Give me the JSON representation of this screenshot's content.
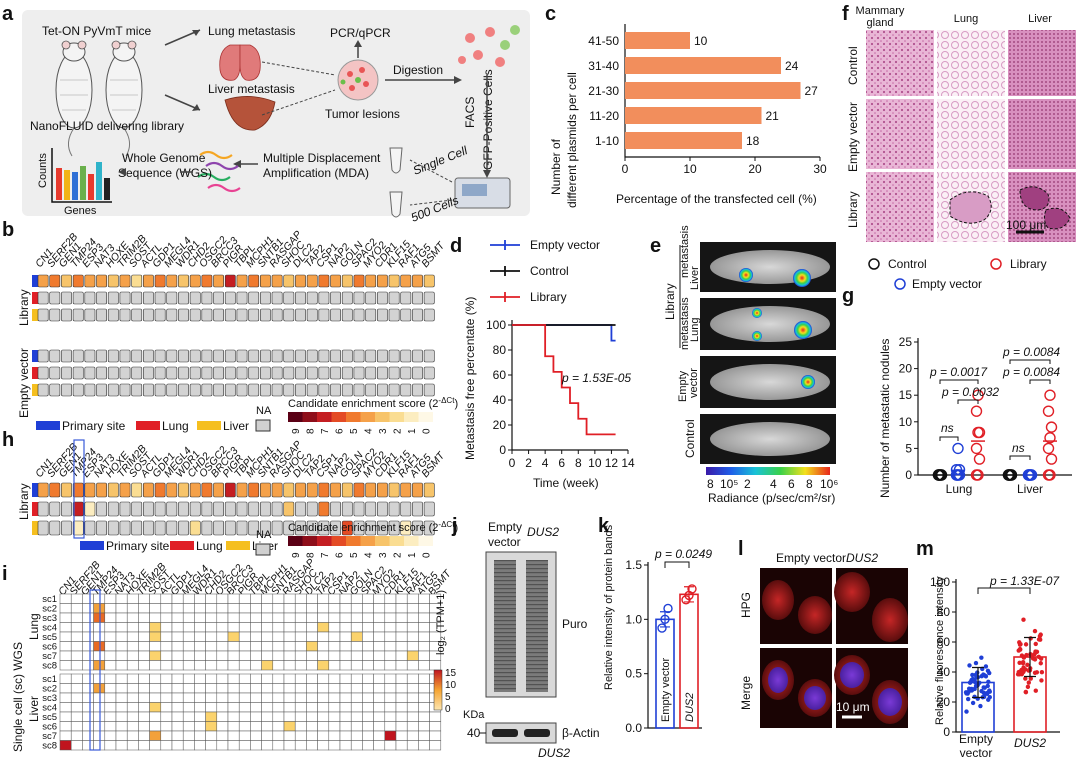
{
  "panels": {
    "a": "a",
    "b": "b",
    "c": "c",
    "d": "d",
    "e": "e",
    "f": "f",
    "g": "g",
    "h": "h",
    "i": "i",
    "j": "j",
    "k": "k",
    "l": "l",
    "m": "m"
  },
  "panel_a": {
    "mice": "Tet-ON PyVmT mice",
    "delivery": "NanoFLUID delivering library",
    "lung": "Lung metastasis",
    "liver": "Liver metastasis",
    "lesions": "Tumor lesions",
    "pcr": "PCR/qPCR",
    "digestion": "Digestion",
    "gfp": "GFP-Positive Cells",
    "facs": "FACS",
    "single": "Single Cell",
    "five_hundred": "500 Cells",
    "mda1": "Multiple Displacement",
    "mda2": "Amplification (MDA)",
    "wgs1": "Whole Genome",
    "wgs2": "Sequence (WGS)",
    "counts": "Counts",
    "genes": "Genes",
    "bar_colors": [
      "#e83a2e",
      "#f2b418",
      "#2e6fd6",
      "#6ab04c",
      "#e83a2e",
      "#2fb3c9",
      "#222222"
    ]
  },
  "genes": [
    "CN1",
    "SERF2B",
    "GEN1",
    "TMP24",
    "ESP3",
    "NAT3",
    "HOXE",
    "TRIM2B",
    "SOST",
    "ACTL",
    "GDP1",
    "MEGL4",
    "WDR1",
    "CHD2",
    "OSGC2",
    "BRCC3",
    "PIGR",
    "TBPL",
    "MCPH1",
    "SNTB1",
    "RASGAP",
    "SHOC",
    "DLC2",
    "TAP2",
    "CSP1",
    "NAP2",
    "GOLN",
    "SPAC2",
    "MYO2",
    "CDR1",
    "KLF15",
    "RAF1",
    "ATG5",
    "BSMT"
  ],
  "panel_b": {
    "groups": [
      "Library",
      "Empty vector"
    ],
    "legend_sites": [
      "Primary site",
      "Lung",
      "Liver"
    ],
    "na": "NA",
    "score_title": "Candidate enrichment score (2",
    "score_sup": "-ΔCt",
    "score_ticks": [
      "9",
      "8",
      "7",
      "6",
      "5",
      "4",
      "3",
      "2",
      "1",
      "0"
    ],
    "score_colors": [
      "#5a0015",
      "#8e0e1a",
      "#c41e22",
      "#e44b25",
      "#f07a2e",
      "#f5a149",
      "#f7c46a",
      "#fadd92",
      "#fcedc0",
      "#fef8e6"
    ],
    "site_colors": [
      "#1f3fd6",
      "#e01f26",
      "#f5bf1f"
    ],
    "primary_row": [
      4,
      5,
      3,
      5,
      4,
      4,
      3,
      4,
      2,
      4,
      5,
      4,
      3,
      4,
      5,
      4,
      7,
      4,
      5,
      4,
      4,
      3,
      4,
      4,
      5,
      4,
      3,
      5,
      4,
      4,
      3,
      4,
      4,
      3
    ]
  },
  "panel_c": {
    "chart_data": {
      "type": "bar",
      "orientation": "horizontal",
      "categories": [
        "41-50",
        "31-40",
        "21-30",
        "11-20",
        "1-10"
      ],
      "values": [
        10,
        24,
        27,
        21,
        18
      ],
      "xlabel": "Percentage of the transfected cell (%)",
      "ylabel": "Number of different plasmids per cell",
      "xlim": [
        0,
        30
      ],
      "xticks": [
        "0",
        "10",
        "20",
        "30"
      ],
      "bar_color": "#f28e5c"
    },
    "ylabel1": "Number of",
    "ylabel2": "different plasmids per cell"
  },
  "panel_d": {
    "chart_data": {
      "type": "line",
      "xlabel": "Time (week)",
      "ylabel": "Metastasis free percentate (%)",
      "xlim": [
        0,
        14
      ],
      "ylim": [
        0,
        100
      ],
      "xticks": [
        "0",
        "2",
        "4",
        "6",
        "8",
        "10",
        "12",
        "14"
      ],
      "yticks": [
        "0",
        "20",
        "40",
        "60",
        "80",
        "100"
      ],
      "series": [
        {
          "name": "Empty vector",
          "color": "#1f3fd6",
          "steps": [
            [
              0,
              100
            ],
            [
              12,
              100
            ],
            [
              12,
              87.5
            ],
            [
              12.5,
              87.5
            ]
          ]
        },
        {
          "name": "Control",
          "color": "#111111",
          "steps": [
            [
              0,
              100
            ],
            [
              12.5,
              100
            ]
          ]
        },
        {
          "name": "Library",
          "color": "#e01f26",
          "steps": [
            [
              0,
              100
            ],
            [
              4,
              100
            ],
            [
              4,
              75
            ],
            [
              5,
              75
            ],
            [
              5,
              62.5
            ],
            [
              6,
              62.5
            ],
            [
              6,
              50
            ],
            [
              7,
              50
            ],
            [
              7,
              37.5
            ],
            [
              8,
              37.5
            ],
            [
              8,
              25
            ],
            [
              9,
              25
            ],
            [
              9,
              12.5
            ],
            [
              12.5,
              12.5
            ]
          ]
        }
      ],
      "annotation": "p = 1.53E-05"
    },
    "legend": [
      "Empty vector",
      "Control",
      "Library"
    ]
  },
  "panel_e": {
    "group_library": "Library",
    "liver_met": "Liver metastasis",
    "liver_1": "Liver",
    "liver_2": "metastasis",
    "lung_1": "Lung",
    "lung_2": "metastasis",
    "empty_1": "Empty",
    "empty_2": "vector",
    "control": "Control",
    "scale_ticks": [
      "8",
      "10⁵",
      "2",
      "4",
      "6",
      "8",
      "10⁶"
    ],
    "scale_label": "Radiance (p/sec/cm²/sr)"
  },
  "panel_f": {
    "cols": [
      "Mammary gland",
      "Lung",
      "Liver"
    ],
    "col_mg1": "Mammary",
    "col_mg2": "gland",
    "rows": [
      "Control",
      "Empty vector",
      "Library"
    ],
    "scale": "100 μm"
  },
  "panel_g": {
    "chart_data": {
      "type": "scatter",
      "ylabel": "Number of metastatic nodules",
      "ylim": [
        0,
        25
      ],
      "yticks": [
        "0",
        "5",
        "10",
        "15",
        "20",
        "25"
      ],
      "categories": [
        "Lung",
        "Liver"
      ],
      "series": [
        {
          "name": "Control",
          "color": "#111111",
          "Lung": [
            0,
            0,
            0,
            0,
            0,
            0,
            0,
            0
          ],
          "Liver": [
            0,
            0,
            0,
            0,
            0,
            0,
            0,
            0
          ]
        },
        {
          "name": "Empty vector",
          "color": "#1f3fd6",
          "Lung": [
            0,
            0,
            0,
            0,
            0,
            1,
            1,
            5
          ],
          "Liver": [
            0,
            0,
            0,
            0,
            0,
            0,
            0,
            0
          ]
        },
        {
          "name": "Library",
          "color": "#e01f26",
          "Lung": [
            0,
            0,
            3,
            5,
            8,
            8,
            12,
            15
          ],
          "Liver": [
            0,
            0,
            3,
            5,
            7,
            9,
            12,
            15
          ]
        }
      ],
      "annotations": [
        "p = 0.0017",
        "p = 0.0032",
        "p = 0.0084",
        "p = 0.0084",
        "ns",
        "ns"
      ]
    },
    "legend": [
      "Control",
      "Library",
      "Empty vector"
    ]
  },
  "panel_h": {
    "group": "Library",
    "legend_sites": [
      "Primary site",
      "Lung",
      "Liver"
    ]
  },
  "panel_i": {
    "ylabel": "Single cell (sc) WGS",
    "lung": "Lung",
    "liver": "Liver",
    "lung_cells": [
      "sc1",
      "sc2",
      "sc3",
      "sc4",
      "sc5",
      "sc6",
      "sc7",
      "sc8"
    ],
    "liver_cells": [
      "sc1",
      "sc2",
      "sc3",
      "sc4",
      "sc5",
      "sc6",
      "sc7",
      "sc8"
    ],
    "legend_title": "log₂ (TPM+1)",
    "legend_ticks": [
      "15",
      "10",
      "5",
      "0"
    ]
  },
  "panel_j": {
    "empty": "Empty",
    "vector": "vector",
    "dus2": "DUS2",
    "puro": "Puro",
    "actin": "β-Actin",
    "kda": "KDa",
    "marker": "40",
    "dus2_below": "DUS2"
  },
  "panel_k": {
    "chart_data": {
      "type": "bar",
      "categories": [
        "Empty vector",
        "DUS2"
      ],
      "values": [
        1.0,
        1.23
      ],
      "points": [
        [
          0.92,
          1.0,
          1.1
        ],
        [
          1.18,
          1.22,
          1.28
        ]
      ],
      "ylabel": "Relative intensity of protein bands",
      "ylim": [
        0,
        1.5
      ],
      "yticks": [
        "0.0",
        "0.5",
        "1.0",
        "1.5"
      ],
      "annotation": "p = 0.0249"
    }
  },
  "panel_l": {
    "cols": [
      "Empty vector",
      "DUS2"
    ],
    "rows": [
      "HPG",
      "Merge"
    ],
    "scale": "10 μm"
  },
  "panel_m": {
    "chart_data": {
      "type": "bar",
      "categories": [
        "Empty vector",
        "DUS2"
      ],
      "values": [
        33,
        50
      ],
      "sd": [
        10,
        13
      ],
      "ylabel": "Relative fluorescence intensity",
      "ylim": [
        0,
        100
      ],
      "yticks": [
        "0",
        "20",
        "40",
        "60",
        "80",
        "100"
      ],
      "annotation": "p = 1.33E-07"
    },
    "x1a": "Empty",
    "x1b": "vector",
    "x2": "DUS2"
  }
}
